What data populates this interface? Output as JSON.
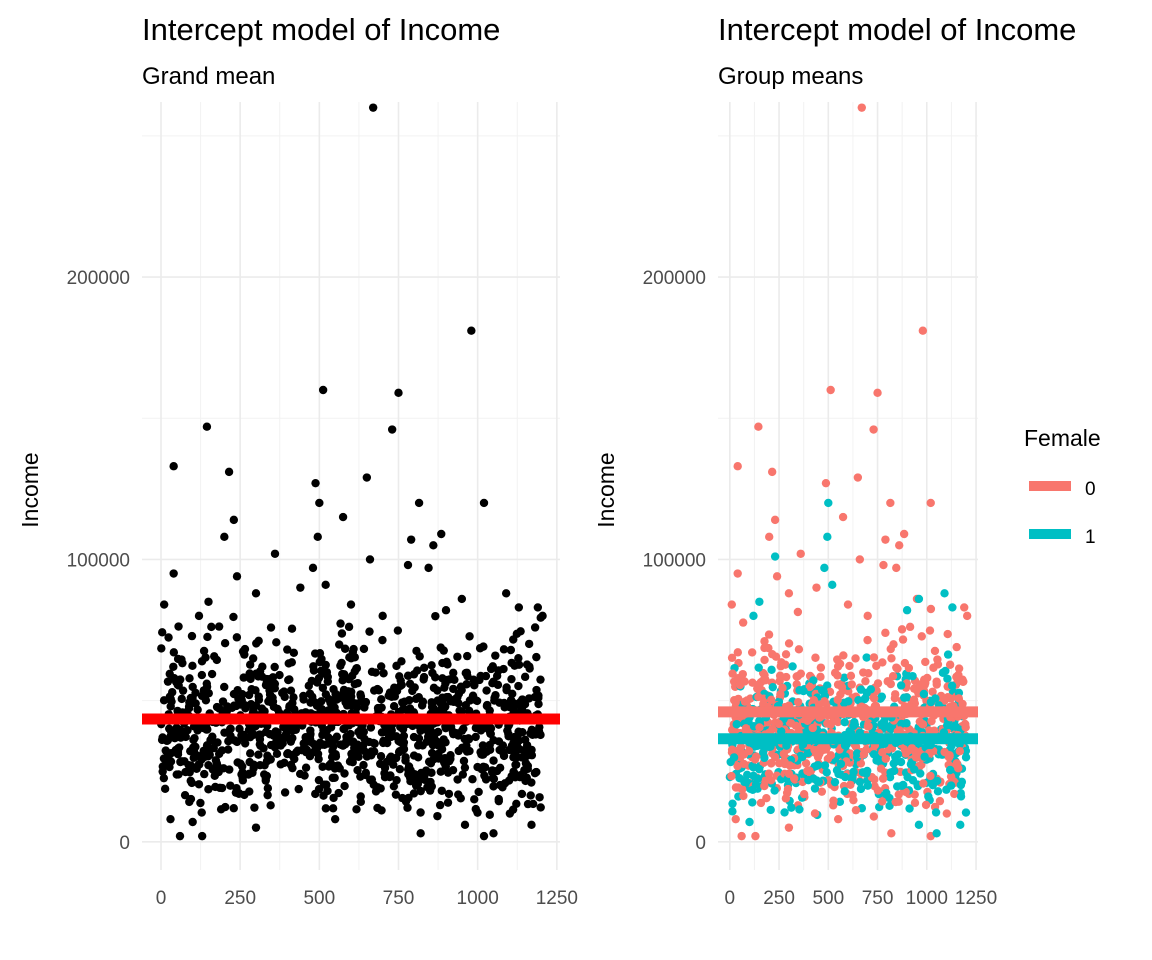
{
  "chart_data": [
    {
      "type": "scatter",
      "title": "Intercept model of Income",
      "subtitle": "Grand mean",
      "xlabel": "",
      "ylabel": "Income",
      "xlim": [
        -60,
        1260
      ],
      "ylim": [
        -10000,
        262000
      ],
      "x_ticks": [
        0,
        250,
        500,
        750,
        1000,
        1250
      ],
      "y_ticks": [
        0,
        100000,
        200000
      ],
      "grid": true,
      "point_color": "#000000",
      "series": [
        {
          "values": [
            [
              40,
              133000
            ],
            [
              145,
              147000
            ],
            [
              215,
              131000
            ],
            [
              230,
              114000
            ],
            [
              200,
              108000
            ],
            [
              240,
              94000
            ],
            [
              360,
              102000
            ],
            [
              40,
              95000
            ],
            [
              488,
              127000
            ],
            [
              500,
              120000
            ],
            [
              512,
              160000
            ],
            [
              495,
              108000
            ],
            [
              575,
              115000
            ],
            [
              650,
              129000
            ],
            [
              670,
              260000
            ],
            [
              730,
              146000
            ],
            [
              750,
              159000
            ],
            [
              790,
              107000
            ],
            [
              815,
              120000
            ],
            [
              860,
              105000
            ],
            [
              885,
              109000
            ],
            [
              980,
              181000
            ],
            [
              1020,
              120000
            ],
            [
              1090,
              88000
            ],
            [
              660,
              100000
            ],
            [
              780,
              98000
            ],
            [
              845,
              97000
            ],
            [
              480,
              97000
            ],
            [
              520,
              91000
            ],
            [
              440,
              90000
            ],
            [
              300,
              88000
            ],
            [
              150,
              85000
            ],
            [
              120,
              80000
            ],
            [
              10,
              84000
            ],
            [
              600,
              84000
            ],
            [
              700,
              80000
            ],
            [
              900,
              82000
            ],
            [
              950,
              86000
            ],
            [
              1130,
              83000
            ],
            [
              1190,
              83000
            ],
            [
              1205,
              80000
            ],
            [
              60,
              2000
            ],
            [
              130,
              2000
            ],
            [
              820,
              3000
            ],
            [
              1020,
              2000
            ],
            [
              1050,
              3000
            ],
            [
              300,
              5000
            ],
            [
              550,
              8000
            ],
            [
              30,
              8000
            ],
            [
              100,
              7000
            ],
            [
              960,
              6000
            ],
            [
              1170,
              6000
            ]
          ]
        }
      ],
      "reference_lines": [
        {
          "name": "",
          "value": 43500,
          "color": "#ff0000"
        }
      ]
    },
    {
      "type": "scatter",
      "title": "Intercept model of Income",
      "subtitle": "Group means",
      "xlabel": "",
      "ylabel": "Income",
      "xlim": [
        -60,
        1260
      ],
      "ylim": [
        -10000,
        262000
      ],
      "x_ticks": [
        0,
        250,
        500,
        750,
        1000,
        1250
      ],
      "y_ticks": [
        0,
        100000,
        200000
      ],
      "grid": true,
      "legend": {
        "title": "Female",
        "position": "right"
      },
      "series": [
        {
          "name": "0",
          "color": "#f8766d",
          "mean": 46000,
          "values": [
            [
              40,
              133000
            ],
            [
              145,
              147000
            ],
            [
              215,
              131000
            ],
            [
              230,
              114000
            ],
            [
              200,
              108000
            ],
            [
              240,
              94000
            ],
            [
              360,
              102000
            ],
            [
              40,
              95000
            ],
            [
              488,
              127000
            ],
            [
              512,
              160000
            ],
            [
              575,
              115000
            ],
            [
              650,
              129000
            ],
            [
              670,
              260000
            ],
            [
              730,
              146000
            ],
            [
              750,
              159000
            ],
            [
              790,
              107000
            ],
            [
              815,
              120000
            ],
            [
              860,
              105000
            ],
            [
              885,
              109000
            ],
            [
              980,
              181000
            ],
            [
              1020,
              120000
            ],
            [
              660,
              100000
            ],
            [
              780,
              98000
            ],
            [
              845,
              97000
            ],
            [
              440,
              90000
            ],
            [
              300,
              88000
            ],
            [
              10,
              84000
            ],
            [
              600,
              84000
            ],
            [
              700,
              80000
            ],
            [
              950,
              86000
            ],
            [
              1190,
              83000
            ],
            [
              1205,
              80000
            ],
            [
              60,
              2000
            ],
            [
              130,
              2000
            ],
            [
              820,
              3000
            ],
            [
              1020,
              2000
            ],
            [
              300,
              5000
            ],
            [
              550,
              8000
            ],
            [
              30,
              8000
            ]
          ]
        },
        {
          "name": "1",
          "color": "#00bfc4",
          "mean": 36500,
          "values": [
            [
              500,
              120000
            ],
            [
              495,
              108000
            ],
            [
              230,
              101000
            ],
            [
              480,
              97000
            ],
            [
              520,
              91000
            ],
            [
              150,
              85000
            ],
            [
              120,
              80000
            ],
            [
              900,
              82000
            ],
            [
              1090,
              88000
            ],
            [
              1130,
              83000
            ],
            [
              960,
              86000
            ],
            [
              1050,
              3000
            ],
            [
              100,
              7000
            ],
            [
              960,
              6000
            ],
            [
              1170,
              6000
            ]
          ]
        }
      ]
    }
  ]
}
